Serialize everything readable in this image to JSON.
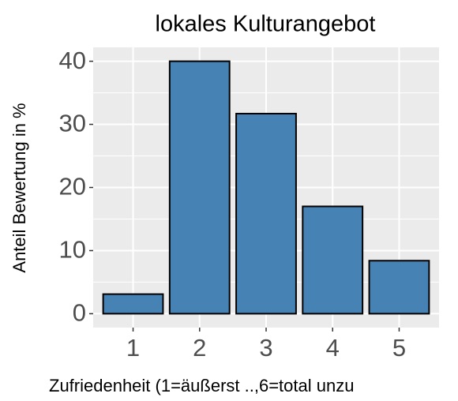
{
  "chart_data": {
    "type": "bar",
    "title": "lokales Kulturangebot",
    "x_label": "Zufriedenheit (1=äußerst ..,6=total unzu",
    "y_label": "Anteil Bewertung in %",
    "categories": [
      "1",
      "2",
      "3",
      "4",
      "5"
    ],
    "values": [
      3.1,
      40,
      31.7,
      17,
      8.4
    ],
    "color": "#4682B4",
    "ylim": [
      -2.2,
      42.2
    ],
    "yticks": [
      0,
      10,
      20,
      30,
      40
    ],
    "grid": true
  }
}
